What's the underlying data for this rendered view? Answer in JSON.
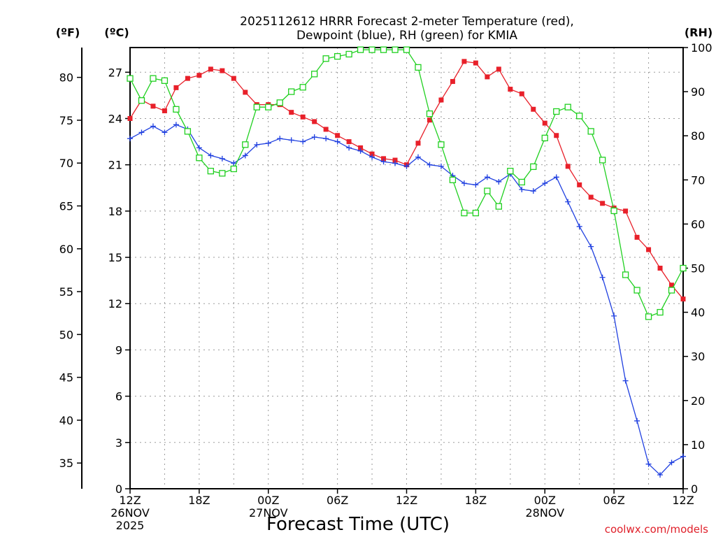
{
  "chart_data": {
    "type": "line",
    "title_lines": [
      "2025112612 HRRR Forecast 2-meter Temperature (red),",
      "Dewpoint (blue), RH (green) for KMIA"
    ],
    "axis_units": {
      "left_f": "(ºF)",
      "left_c": "(ºC)",
      "right_rh": "(RH)"
    },
    "xlabel": "Forecast Time (UTC)",
    "credit": "coolwx.com/models",
    "x_range_hours": [
      0,
      48
    ],
    "x_ticks": [
      {
        "h": 0,
        "lines": [
          "12Z",
          "26NOV",
          "2025"
        ]
      },
      {
        "h": 6,
        "lines": [
          "18Z"
        ]
      },
      {
        "h": 12,
        "lines": [
          "00Z",
          "27NOV"
        ]
      },
      {
        "h": 18,
        "lines": [
          "06Z"
        ]
      },
      {
        "h": 24,
        "lines": [
          "12Z"
        ]
      },
      {
        "h": 30,
        "lines": [
          "18Z"
        ]
      },
      {
        "h": 36,
        "lines": [
          "00Z",
          "28NOV"
        ]
      },
      {
        "h": 42,
        "lines": [
          "06Z"
        ]
      },
      {
        "h": 48,
        "lines": [
          "12Z"
        ]
      }
    ],
    "celsius_range": [
      0,
      28.6
    ],
    "celsius_ticks": [
      "0",
      "3",
      "6",
      "9",
      "12",
      "15",
      "18",
      "21",
      "24",
      "27"
    ],
    "fahrenheit_ticks": [
      "35",
      "40",
      "45",
      "50",
      "55",
      "60",
      "65",
      "70",
      "75",
      "80"
    ],
    "rh_range": [
      0,
      100
    ],
    "rh_ticks": [
      "0",
      "10",
      "20",
      "30",
      "40",
      "50",
      "60",
      "70",
      "80",
      "90",
      "100"
    ],
    "series": [
      {
        "name": "2-meter Temperature",
        "unit": "C",
        "color": "#e8202a",
        "marker": "filled-square",
        "values": [
          24.0,
          25.2,
          24.8,
          24.5,
          26.0,
          26.6,
          26.8,
          27.2,
          27.1,
          26.6,
          25.7,
          24.9,
          24.9,
          24.9,
          24.4,
          24.1,
          23.8,
          23.3,
          22.9,
          22.5,
          22.1,
          21.7,
          21.4,
          21.3,
          21.0,
          22.4,
          23.9,
          25.2,
          26.4,
          27.7,
          27.6,
          26.7,
          27.2,
          25.9,
          25.6,
          24.6,
          23.7,
          22.9,
          20.9,
          19.7,
          18.9,
          18.5,
          18.2,
          18.0,
          16.3,
          15.5,
          14.3,
          13.2,
          12.3
        ]
      },
      {
        "name": "Dewpoint",
        "unit": "C",
        "color": "#2040e0",
        "marker": "plus",
        "values": [
          22.7,
          23.1,
          23.5,
          23.1,
          23.6,
          23.3,
          22.1,
          21.6,
          21.4,
          21.1,
          21.6,
          22.3,
          22.4,
          22.7,
          22.6,
          22.5,
          22.8,
          22.7,
          22.5,
          22.1,
          21.9,
          21.5,
          21.2,
          21.1,
          20.9,
          21.5,
          21.0,
          20.9,
          20.3,
          19.8,
          19.7,
          20.2,
          19.9,
          20.4,
          19.4,
          19.3,
          19.8,
          20.2,
          18.6,
          17.0,
          15.7,
          13.7,
          11.2,
          7.0,
          4.4,
          1.6,
          0.9,
          1.7,
          2.1
        ]
      },
      {
        "name": "RH",
        "unit": "%",
        "color": "#20d020",
        "marker": "open-square",
        "values": [
          93,
          88,
          93,
          92.5,
          86,
          81,
          75,
          72,
          71.5,
          72.5,
          78,
          86.5,
          86.5,
          87.5,
          90,
          91,
          94,
          97.5,
          98,
          98.5,
          99.5,
          99.5,
          99.5,
          99.5,
          99.5,
          95.5,
          85,
          78,
          70,
          62.5,
          62.5,
          67.5,
          64,
          72,
          69.5,
          73,
          79.5,
          85.5,
          86.5,
          84.5,
          81,
          74.5,
          63,
          48.5,
          45,
          39,
          40,
          45,
          50
        ]
      }
    ]
  }
}
